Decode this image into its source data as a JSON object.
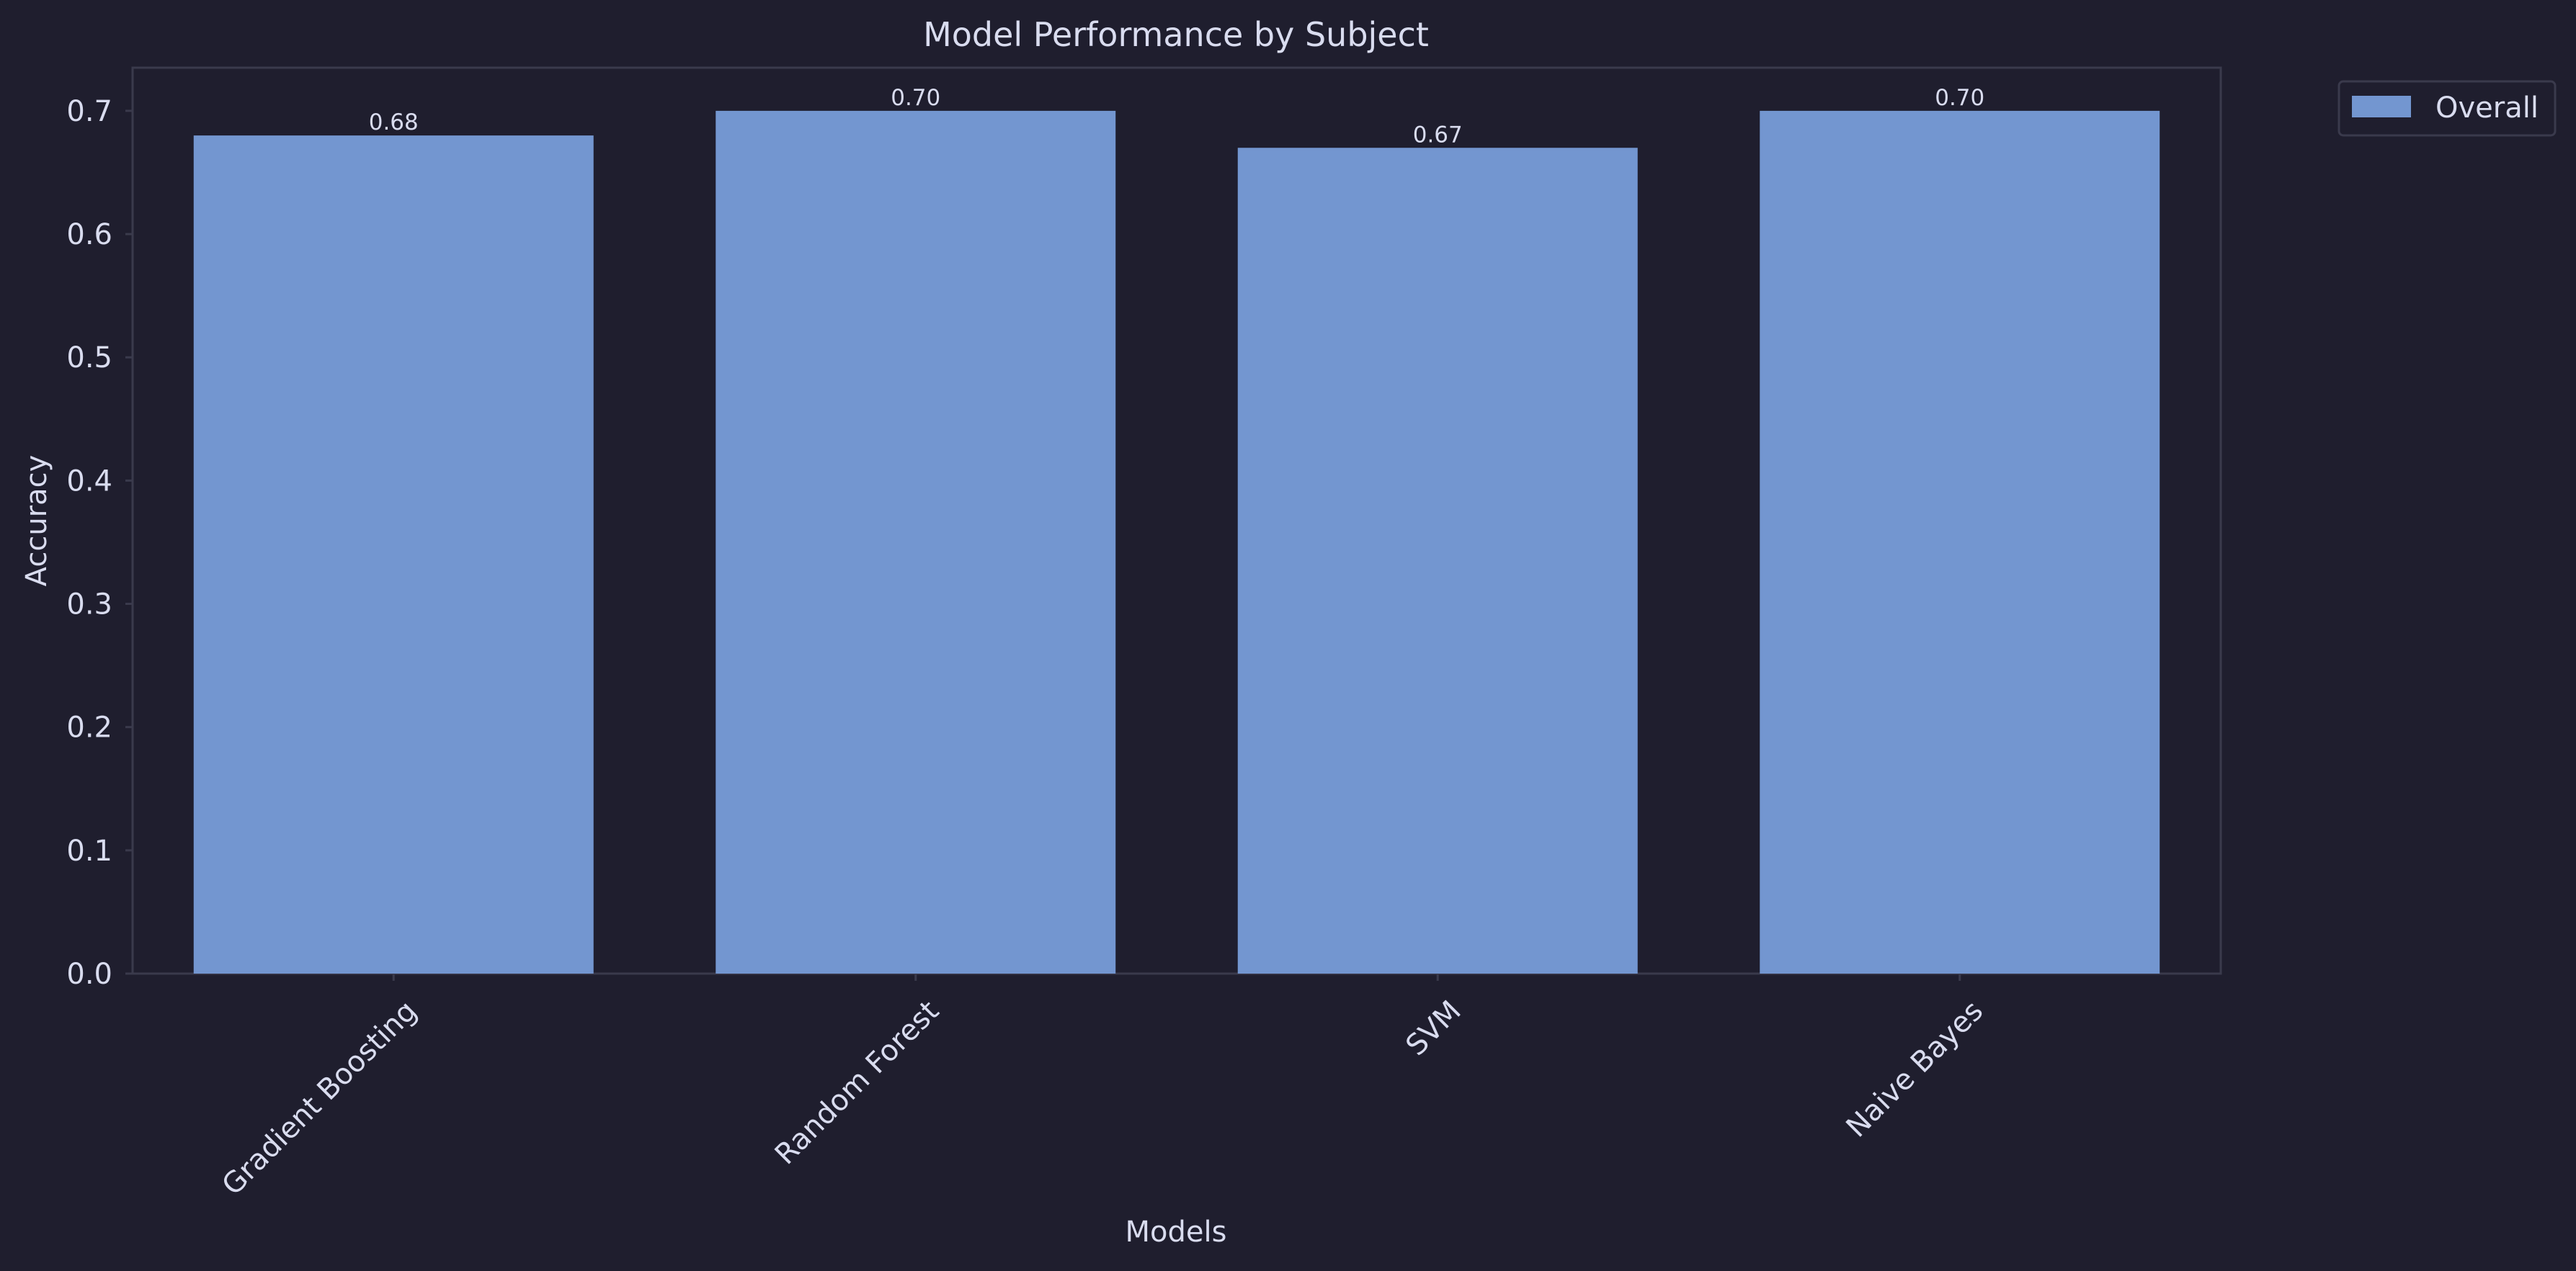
{
  "chart_data": {
    "type": "bar",
    "title": "Model Performance by Subject",
    "xlabel": "Models",
    "ylabel": "Accuracy",
    "categories": [
      "Gradient Boosting",
      "Random Forest",
      "SVM",
      "Naive Bayes"
    ],
    "series": [
      {
        "name": "Overall",
        "values": [
          0.68,
          0.7,
          0.67,
          0.7
        ],
        "labels": [
          "0.68",
          "0.70",
          "0.67",
          "0.70"
        ],
        "color": "#7396d0"
      }
    ],
    "ylim": [
      0,
      0.735
    ],
    "yticks": [
      0.0,
      0.1,
      0.2,
      0.3,
      0.4,
      0.5,
      0.6,
      0.7
    ],
    "ytick_labels": [
      "0.0",
      "0.1",
      "0.2",
      "0.3",
      "0.4",
      "0.5",
      "0.6",
      "0.7"
    ],
    "grid": false,
    "legend": "top-right, outside plot"
  },
  "colors": {
    "background": "#1f1e2e",
    "plot_frame": "#3a3a4c",
    "text": "#d9dcef",
    "bar": "#7396d0"
  }
}
